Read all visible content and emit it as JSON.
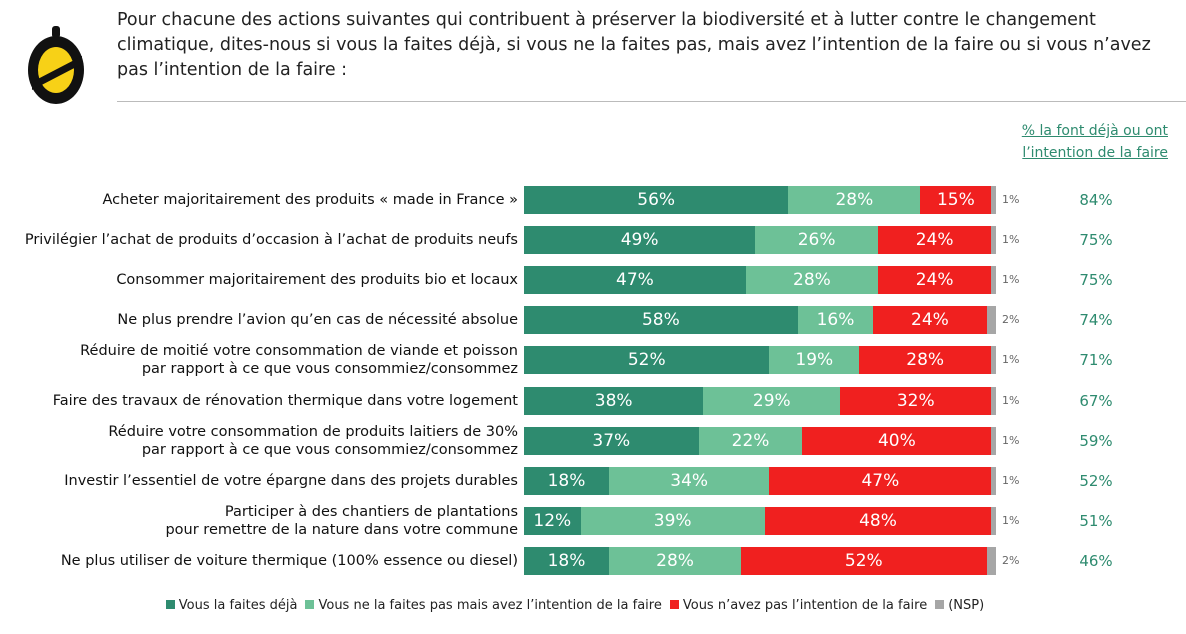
{
  "chart_data": {
    "type": "stacked-bar",
    "orientation": "horizontal",
    "title": "Pour chacune des actions suivantes qui contribuent à préserver la biodiversité et à lutter contre le changement climatique, dites-nous si vous la faites déjà, si vous ne la faites pas, mais avez l’intention de la faire ou si vous n’avez pas l’intention de la faire :",
    "categories": [
      "Acheter majoritairement des produits « made in France »",
      "Privilégier l’achat de produits d’occasion à l’achat de produits neufs",
      "Consommer majoritairement des produits bio et locaux",
      "Ne plus prendre l’avion qu’en cas de nécessité absolue",
      "Réduire de moitié votre consommation de viande et poisson\npar rapport à ce que vous consommiez/consommez",
      "Faire des travaux de rénovation thermique dans votre logement",
      "Réduire votre consommation de produits laitiers de 30%\npar rapport à ce que vous consommiez/consommez",
      "Investir l’essentiel de votre épargne dans des projets durables",
      "Participer à des chantiers de plantations\npour remettre de la nature dans votre commune",
      "Ne plus utiliser de voiture thermique (100% essence ou diesel)"
    ],
    "series": [
      {
        "name": "Vous la faites déjà",
        "color": "#2e8b6f",
        "values": [
          56,
          49,
          47,
          58,
          52,
          38,
          37,
          18,
          12,
          18
        ],
        "value_labels": [
          "56%",
          "49%",
          "47%",
          "58%",
          "52%",
          "38%",
          "37%",
          "18%",
          "12%",
          "18%"
        ]
      },
      {
        "name": "Vous ne la faites pas mais avez l’intention de la faire",
        "color": "#6dc197",
        "values": [
          28,
          26,
          28,
          16,
          19,
          29,
          22,
          34,
          39,
          28
        ],
        "value_labels": [
          "28%",
          "26%",
          "28%",
          "16%",
          "19%",
          "29%",
          "22%",
          "34%",
          "39%",
          "28%"
        ]
      },
      {
        "name": "Vous n’avez pas l’intention de la faire",
        "color": "#f0201f",
        "values": [
          15,
          24,
          24,
          24,
          28,
          32,
          40,
          47,
          48,
          52
        ],
        "value_labels": [
          "15%",
          "24%",
          "24%",
          "24%",
          "28%",
          "32%",
          "40%",
          "47%",
          "48%",
          "52%"
        ]
      },
      {
        "name": "(NSP)",
        "color": "#a6a6a6",
        "values": [
          1,
          1,
          1,
          2,
          1,
          1,
          1,
          1,
          1,
          2
        ],
        "value_labels": [
          "1%",
          "1%",
          "1%",
          "2%",
          "1%",
          "1%",
          "1%",
          "1%",
          "1%",
          "2%"
        ]
      }
    ],
    "totals_title": "% la font déjà ou ont\nl’intention de la faire",
    "totals": {
      "color": "#2e8b6f",
      "values": [
        84,
        75,
        75,
        74,
        71,
        67,
        59,
        52,
        51,
        46
      ],
      "value_labels": [
        "84%",
        "75%",
        "75%",
        "74%",
        "71%",
        "67%",
        "59%",
        "52%",
        "51%",
        "46%"
      ]
    }
  }
}
